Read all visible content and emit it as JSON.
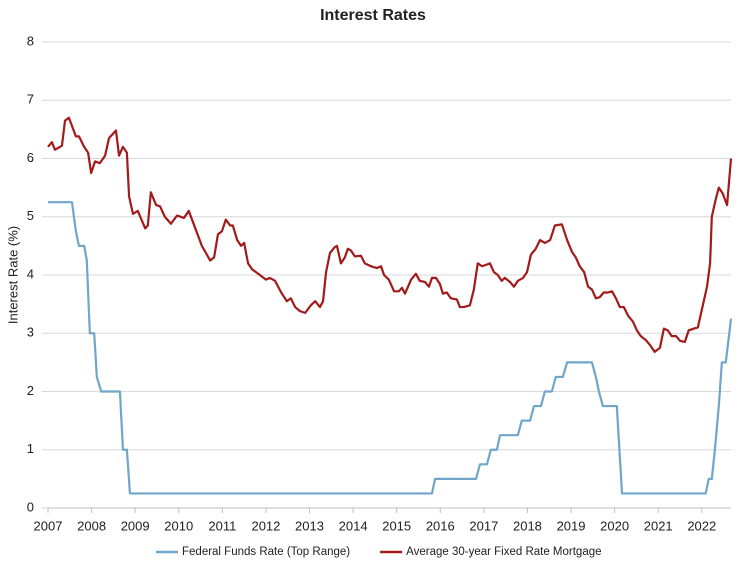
{
  "chart_data": {
    "type": "line",
    "title": "Interest Rates",
    "y_label": "Interest Rate (%)",
    "xlim": [
      2007,
      2022.67
    ],
    "xticks": [
      2007,
      2008,
      2009,
      2010,
      2011,
      2012,
      2013,
      2014,
      2015,
      2016,
      2017,
      2018,
      2019,
      2020,
      2021,
      2022
    ],
    "ylim": [
      0,
      8
    ],
    "yticks": [
      0,
      1,
      2,
      3,
      4,
      5,
      6,
      7,
      8
    ],
    "grid": true,
    "legend": "bottom",
    "series": [
      {
        "name": "Federal Funds Rate (Top Range)",
        "color": "#6fa6c9",
        "x": [
          2007.0,
          2007.55,
          2007.64,
          2007.71,
          2007.83,
          2007.89,
          2007.96,
          2008.06,
          2008.12,
          2008.22,
          2008.65,
          2008.72,
          2008.81,
          2008.88,
          2015.81,
          2015.88,
          2016.82,
          2016.91,
          2017.07,
          2017.16,
          2017.3,
          2017.37,
          2017.78,
          2017.87,
          2018.06,
          2018.15,
          2018.31,
          2018.4,
          2018.56,
          2018.65,
          2018.81,
          2018.91,
          2019.48,
          2019.57,
          2019.64,
          2019.73,
          2020.05,
          2020.17,
          2022.09,
          2022.16,
          2022.23,
          2022.3,
          2022.39,
          2022.46,
          2022.55,
          2022.67
        ],
        "values": [
          5.25,
          5.25,
          4.75,
          4.5,
          4.5,
          4.25,
          3.0,
          3.0,
          2.25,
          2.0,
          2.0,
          1.0,
          1.0,
          0.25,
          0.25,
          0.5,
          0.5,
          0.75,
          0.75,
          1.0,
          1.0,
          1.25,
          1.25,
          1.5,
          1.5,
          1.75,
          1.75,
          2.0,
          2.0,
          2.25,
          2.25,
          2.5,
          2.5,
          2.25,
          2.0,
          1.75,
          1.75,
          0.25,
          0.25,
          0.5,
          0.5,
          1.0,
          1.75,
          2.5,
          2.5,
          3.25
        ]
      },
      {
        "name": "Average 30-year Fixed Rate Mortgage",
        "color": "#a31a1a",
        "x": [
          2007.0,
          2007.09,
          2007.16,
          2007.32,
          2007.39,
          2007.48,
          2007.64,
          2007.71,
          2007.83,
          2007.92,
          2007.99,
          2008.08,
          2008.19,
          2008.31,
          2008.4,
          2008.56,
          2008.63,
          2008.72,
          2008.81,
          2008.86,
          2008.95,
          2009.06,
          2009.23,
          2009.29,
          2009.36,
          2009.48,
          2009.57,
          2009.68,
          2009.82,
          2009.96,
          2010.12,
          2010.23,
          2010.33,
          2010.53,
          2010.72,
          2010.81,
          2010.9,
          2010.99,
          2011.08,
          2011.18,
          2011.24,
          2011.34,
          2011.43,
          2011.5,
          2011.59,
          2011.68,
          2011.86,
          2012.0,
          2012.09,
          2012.21,
          2012.35,
          2012.48,
          2012.57,
          2012.67,
          2012.78,
          2012.9,
          2013.03,
          2013.13,
          2013.24,
          2013.31,
          2013.38,
          2013.47,
          2013.58,
          2013.63,
          2013.72,
          2013.81,
          2013.88,
          2013.95,
          2014.04,
          2014.18,
          2014.27,
          2014.41,
          2014.55,
          2014.64,
          2014.71,
          2014.82,
          2014.94,
          2015.05,
          2015.12,
          2015.19,
          2015.33,
          2015.44,
          2015.53,
          2015.65,
          2015.74,
          2015.81,
          2015.9,
          2015.99,
          2016.06,
          2016.15,
          2016.24,
          2016.38,
          2016.45,
          2016.54,
          2016.68,
          2016.77,
          2016.86,
          2016.96,
          2017.14,
          2017.23,
          2017.32,
          2017.41,
          2017.48,
          2017.6,
          2017.69,
          2017.78,
          2017.9,
          2017.99,
          2018.08,
          2018.19,
          2018.29,
          2018.4,
          2018.52,
          2018.63,
          2018.79,
          2018.91,
          2019.02,
          2019.11,
          2019.2,
          2019.3,
          2019.39,
          2019.48,
          2019.57,
          2019.66,
          2019.75,
          2019.85,
          2019.94,
          2020.03,
          2020.12,
          2020.21,
          2020.31,
          2020.42,
          2020.51,
          2020.6,
          2020.72,
          2020.81,
          2020.92,
          2021.04,
          2021.13,
          2021.22,
          2021.31,
          2021.41,
          2021.5,
          2021.61,
          2021.7,
          2021.82,
          2021.91,
          2022.03,
          2022.12,
          2022.19,
          2022.23,
          2022.32,
          2022.39,
          2022.48,
          2022.58,
          2022.67
        ],
        "values": [
          6.2,
          6.28,
          6.15,
          6.22,
          6.65,
          6.7,
          6.38,
          6.38,
          6.2,
          6.1,
          5.75,
          5.95,
          5.92,
          6.05,
          6.35,
          6.48,
          6.05,
          6.2,
          6.1,
          5.35,
          5.05,
          5.1,
          4.8,
          4.85,
          5.42,
          5.2,
          5.18,
          5.0,
          4.88,
          5.02,
          4.98,
          5.1,
          4.9,
          4.5,
          4.25,
          4.3,
          4.7,
          4.75,
          4.95,
          4.85,
          4.85,
          4.6,
          4.5,
          4.55,
          4.2,
          4.1,
          4.0,
          3.92,
          3.95,
          3.9,
          3.7,
          3.55,
          3.6,
          3.45,
          3.38,
          3.35,
          3.48,
          3.55,
          3.45,
          3.55,
          4.05,
          4.38,
          4.48,
          4.5,
          4.2,
          4.3,
          4.45,
          4.42,
          4.32,
          4.33,
          4.2,
          4.15,
          4.12,
          4.15,
          4.0,
          3.92,
          3.72,
          3.72,
          3.78,
          3.68,
          3.92,
          4.02,
          3.9,
          3.88,
          3.8,
          3.95,
          3.95,
          3.85,
          3.68,
          3.7,
          3.6,
          3.58,
          3.45,
          3.45,
          3.48,
          3.75,
          4.2,
          4.15,
          4.2,
          4.05,
          4.0,
          3.9,
          3.95,
          3.88,
          3.8,
          3.9,
          3.95,
          4.05,
          4.35,
          4.45,
          4.6,
          4.55,
          4.6,
          4.85,
          4.87,
          4.6,
          4.4,
          4.3,
          4.15,
          4.05,
          3.8,
          3.75,
          3.6,
          3.62,
          3.7,
          3.7,
          3.72,
          3.6,
          3.45,
          3.45,
          3.3,
          3.2,
          3.05,
          2.95,
          2.88,
          2.8,
          2.68,
          2.75,
          3.08,
          3.05,
          2.95,
          2.95,
          2.87,
          2.85,
          3.05,
          3.08,
          3.1,
          3.5,
          3.8,
          4.2,
          5.0,
          5.3,
          5.5,
          5.4,
          5.2,
          6.0
        ]
      }
    ]
  }
}
